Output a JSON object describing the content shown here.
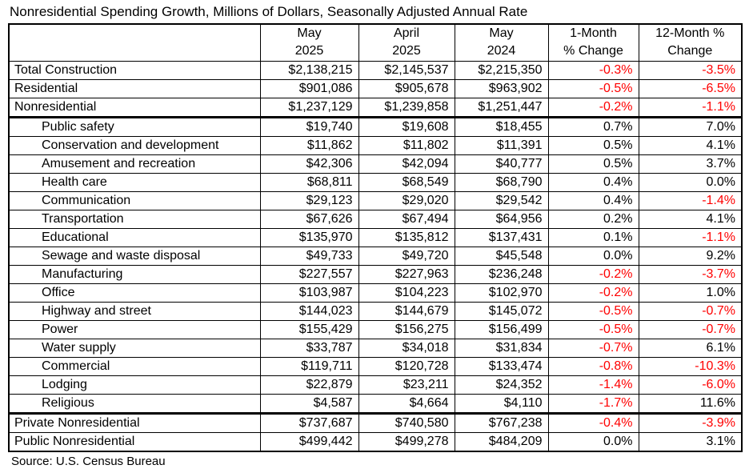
{
  "title": "Nonresidential Spending Growth, Millions of Dollars, Seasonally Adjusted Annual Rate",
  "source": "Source: U.S. Census Bureau",
  "colors": {
    "negative": "#FF0000",
    "text": "#000000",
    "border": "#000000",
    "background": "#FFFFFF"
  },
  "chart_data": {
    "type": "table",
    "title": "Nonresidential Spending Growth, Millions of Dollars, Seasonally Adjusted Annual Rate",
    "columns": [
      "",
      "May\n2025",
      "April\n2025",
      "May\n2024",
      "1-Month\n% Change",
      "12-Month %\nChange"
    ],
    "rows": [
      {
        "label": "Total Construction",
        "indent": false,
        "group_end": false,
        "values": [
          "$2,138,215",
          "$2,145,537",
          "$2,215,350",
          "-0.3%",
          "-3.5%"
        ]
      },
      {
        "label": "Residential",
        "indent": false,
        "group_end": false,
        "values": [
          "$901,086",
          "$905,678",
          "$963,902",
          "-0.5%",
          "-6.5%"
        ]
      },
      {
        "label": "Nonresidential",
        "indent": false,
        "group_end": true,
        "values": [
          "$1,237,129",
          "$1,239,858",
          "$1,251,447",
          "-0.2%",
          "-1.1%"
        ]
      },
      {
        "label": "Public safety",
        "indent": true,
        "group_end": false,
        "values": [
          "$19,740",
          "$19,608",
          "$18,455",
          "0.7%",
          "7.0%"
        ]
      },
      {
        "label": "Conservation and development",
        "indent": true,
        "group_end": false,
        "values": [
          "$11,862",
          "$11,802",
          "$11,391",
          "0.5%",
          "4.1%"
        ]
      },
      {
        "label": "Amusement and recreation",
        "indent": true,
        "group_end": false,
        "values": [
          "$42,306",
          "$42,094",
          "$40,777",
          "0.5%",
          "3.7%"
        ]
      },
      {
        "label": "Health care",
        "indent": true,
        "group_end": false,
        "values": [
          "$68,811",
          "$68,549",
          "$68,790",
          "0.4%",
          "0.0%"
        ]
      },
      {
        "label": "Communication",
        "indent": true,
        "group_end": false,
        "values": [
          "$29,123",
          "$29,020",
          "$29,542",
          "0.4%",
          "-1.4%"
        ]
      },
      {
        "label": "Transportation",
        "indent": true,
        "group_end": false,
        "values": [
          "$67,626",
          "$67,494",
          "$64,956",
          "0.2%",
          "4.1%"
        ]
      },
      {
        "label": "Educational",
        "indent": true,
        "group_end": false,
        "values": [
          "$135,970",
          "$135,812",
          "$137,431",
          "0.1%",
          "-1.1%"
        ]
      },
      {
        "label": "Sewage and waste disposal",
        "indent": true,
        "group_end": false,
        "values": [
          "$49,733",
          "$49,720",
          "$45,548",
          "0.0%",
          "9.2%"
        ]
      },
      {
        "label": "Manufacturing",
        "indent": true,
        "group_end": false,
        "values": [
          "$227,557",
          "$227,963",
          "$236,248",
          "-0.2%",
          "-3.7%"
        ]
      },
      {
        "label": "Office",
        "indent": true,
        "group_end": false,
        "values": [
          "$103,987",
          "$104,223",
          "$102,970",
          "-0.2%",
          "1.0%"
        ]
      },
      {
        "label": "Highway and street",
        "indent": true,
        "group_end": false,
        "values": [
          "$144,023",
          "$144,679",
          "$145,072",
          "-0.5%",
          "-0.7%"
        ]
      },
      {
        "label": "Power",
        "indent": true,
        "group_end": false,
        "values": [
          "$155,429",
          "$156,275",
          "$156,499",
          "-0.5%",
          "-0.7%"
        ]
      },
      {
        "label": "Water supply",
        "indent": true,
        "group_end": false,
        "values": [
          "$33,787",
          "$34,018",
          "$31,834",
          "-0.7%",
          "6.1%"
        ]
      },
      {
        "label": "Commercial",
        "indent": true,
        "group_end": false,
        "values": [
          "$119,711",
          "$120,728",
          "$133,474",
          "-0.8%",
          "-10.3%"
        ]
      },
      {
        "label": "Lodging",
        "indent": true,
        "group_end": false,
        "values": [
          "$22,879",
          "$23,211",
          "$24,352",
          "-1.4%",
          "-6.0%"
        ]
      },
      {
        "label": "Religious",
        "indent": true,
        "group_end": true,
        "values": [
          "$4,587",
          "$4,664",
          "$4,110",
          "-1.7%",
          "11.6%"
        ]
      },
      {
        "label": "Private Nonresidential",
        "indent": false,
        "group_end": false,
        "values": [
          "$737,687",
          "$740,580",
          "$767,238",
          "-0.4%",
          "-3.9%"
        ]
      },
      {
        "label": "Public Nonresidential",
        "indent": false,
        "group_end": false,
        "values": [
          "$499,442",
          "$499,278",
          "$484,209",
          "0.0%",
          "3.1%"
        ]
      }
    ]
  }
}
